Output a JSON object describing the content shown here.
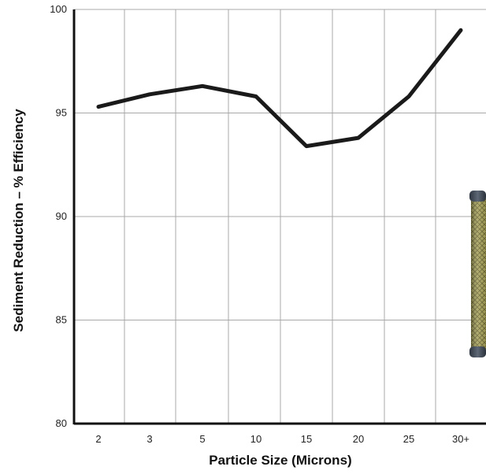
{
  "chart_data": {
    "type": "line",
    "title": "",
    "xlabel": "Particle Size (Microns)",
    "ylabel": "Sediment Reduction – % Efficiency",
    "categories": [
      "2",
      "3",
      "5",
      "10",
      "15",
      "20",
      "25",
      "30+"
    ],
    "series": [
      {
        "values": [
          95.3,
          95.9,
          96.3,
          95.8,
          93.4,
          93.8,
          95.8,
          99.0
        ]
      }
    ],
    "ylim": [
      80,
      100
    ],
    "yticks": [
      80,
      85,
      90,
      95,
      100
    ],
    "grid": true,
    "legend": "none",
    "colors": {
      "line": "#1a1a1a",
      "grid": "#a8a8a8",
      "axis": "#111111"
    },
    "decoration": "filter-cartridge-image"
  }
}
